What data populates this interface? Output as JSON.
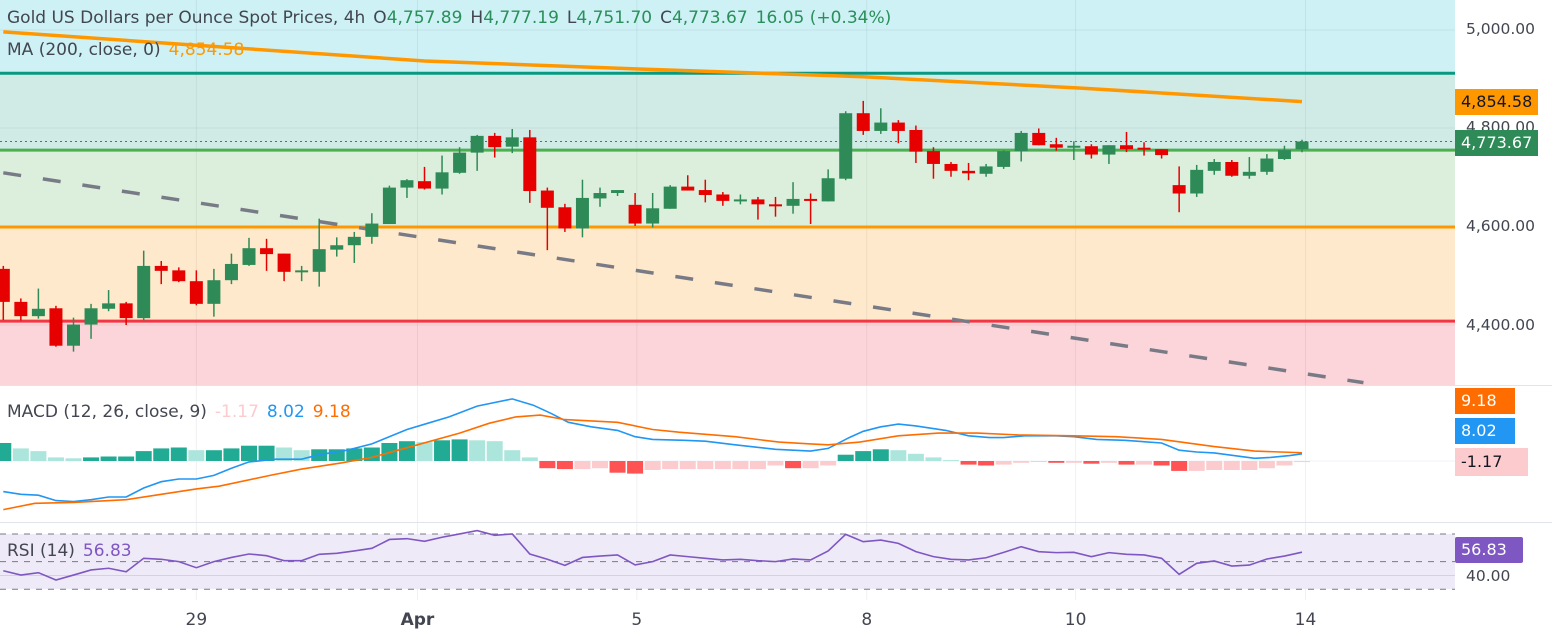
{
  "header": {
    "title": "Gold US Dollars per Ounce Spot Prices, 4h",
    "o_label": "O",
    "o_value": "4,757.89",
    "h_label": "H",
    "h_value": "4,777.19",
    "l_label": "L",
    "l_value": "4,751.70",
    "c_label": "C",
    "c_value": "4,773.67",
    "change": "16.05 (+0.34%)"
  },
  "ma_legend": {
    "label": "MA (200, close, 0)",
    "value": "4,854.58"
  },
  "macd_legend": {
    "label": "MACD (12, 26, close, 9)",
    "hist": "-1.17",
    "macd": "8.02",
    "signal": "9.18"
  },
  "rsi_legend": {
    "label": "RSI (14)",
    "value": "56.83"
  },
  "colors": {
    "up": "#2e8b57",
    "down": "#e60000",
    "ma": "#ff9800",
    "macd": "#2196f3",
    "signal": "#ff6d00",
    "rsi": "#7e57c2",
    "hist_up_strong": "#22ab94",
    "hist_up_weak": "#ace5dc",
    "hist_down_strong": "#ff5252",
    "hist_down_weak": "#fccbcd"
  },
  "right_axis": {
    "ticks": [
      {
        "value": 5000,
        "label": "5,000.00"
      },
      {
        "value": 4800,
        "label": "4,800.00"
      },
      {
        "value": 4600,
        "label": "4,600.00"
      },
      {
        "value": 4400,
        "label": "4,400.00"
      }
    ],
    "ma_tag": "4,854.58",
    "price_tag": "4,773.67",
    "macd_signal_tag": "9.18",
    "macd_tag": "8.02",
    "hist_tag": "-1.17",
    "rsi_tag": "56.83",
    "rsi_tick": "40.00"
  },
  "chart_data": {
    "type": "candlestick",
    "interval": "4h",
    "x_ticks": [
      {
        "label": "29",
        "bar": 11
      },
      {
        "label": "Apr",
        "bar": 23.6
      },
      {
        "label": "5",
        "bar": 36.1
      },
      {
        "label": "8",
        "bar": 49.2
      },
      {
        "label": "10",
        "bar": 61.1
      },
      {
        "label": "14",
        "bar": 74.2
      }
    ],
    "ylim": [
      4300,
      5010
    ],
    "candles_ohlc": [
      [
        4515,
        4521,
        4411,
        4448
      ],
      [
        4448,
        4455,
        4410,
        4419
      ],
      [
        4419,
        4475,
        4414,
        4434
      ],
      [
        4435,
        4440,
        4357,
        4359
      ],
      [
        4359,
        4416,
        4347,
        4402
      ],
      [
        4402,
        4444,
        4373,
        4435
      ],
      [
        4434,
        4472,
        4429,
        4445
      ],
      [
        4445,
        4448,
        4401,
        4415
      ],
      [
        4415,
        4552,
        4410,
        4521
      ],
      [
        4521,
        4531,
        4484,
        4511
      ],
      [
        4512,
        4518,
        4488,
        4490
      ],
      [
        4490,
        4512,
        4441,
        4444
      ],
      [
        4444,
        4515,
        4418,
        4492
      ],
      [
        4492,
        4546,
        4484,
        4525
      ],
      [
        4523,
        4578,
        4521,
        4557
      ],
      [
        4557,
        4576,
        4511,
        4545
      ],
      [
        4546,
        4546,
        4490,
        4509
      ],
      [
        4509,
        4521,
        4490,
        4512
      ],
      [
        4509,
        4617,
        4479,
        4555
      ],
      [
        4554,
        4579,
        4540,
        4563
      ],
      [
        4563,
        4590,
        4527,
        4580
      ],
      [
        4580,
        4628,
        4566,
        4607
      ],
      [
        4606,
        4684,
        4606,
        4680
      ],
      [
        4680,
        4697,
        4659,
        4695
      ],
      [
        4693,
        4722,
        4676,
        4678
      ],
      [
        4678,
        4745,
        4666,
        4711
      ],
      [
        4710,
        4762,
        4708,
        4751
      ],
      [
        4751,
        4787,
        4714,
        4785
      ],
      [
        4785,
        4791,
        4741,
        4762
      ],
      [
        4763,
        4799,
        4750,
        4782
      ],
      [
        4782,
        4797,
        4649,
        4673
      ],
      [
        4674,
        4680,
        4553,
        4639
      ],
      [
        4640,
        4647,
        4590,
        4597
      ],
      [
        4597,
        4696,
        4579,
        4659
      ],
      [
        4658,
        4680,
        4641,
        4669
      ],
      [
        4669,
        4675,
        4663,
        4675
      ],
      [
        4645,
        4669,
        4602,
        4607
      ],
      [
        4607,
        4669,
        4599,
        4638
      ],
      [
        4637,
        4685,
        4637,
        4682
      ],
      [
        4682,
        4705,
        4674,
        4674
      ],
      [
        4675,
        4696,
        4650,
        4665
      ],
      [
        4666,
        4671,
        4643,
        4653
      ],
      [
        4653,
        4666,
        4646,
        4656
      ],
      [
        4656,
        4661,
        4615,
        4646
      ],
      [
        4646,
        4661,
        4621,
        4644
      ],
      [
        4643,
        4691,
        4627,
        4657
      ],
      [
        4657,
        4668,
        4606,
        4653
      ],
      [
        4652,
        4717,
        4652,
        4699
      ],
      [
        4698,
        4835,
        4695,
        4831
      ],
      [
        4831,
        4856,
        4787,
        4795
      ],
      [
        4795,
        4841,
        4789,
        4812
      ],
      [
        4812,
        4817,
        4770,
        4795
      ],
      [
        4797,
        4806,
        4730,
        4753
      ],
      [
        4754,
        4762,
        4698,
        4728
      ],
      [
        4728,
        4732,
        4702,
        4714
      ],
      [
        4714,
        4730,
        4695,
        4709
      ],
      [
        4708,
        4728,
        4702,
        4723
      ],
      [
        4722,
        4756,
        4718,
        4754
      ],
      [
        4754,
        4795,
        4733,
        4791
      ],
      [
        4791,
        4800,
        4766,
        4766
      ],
      [
        4768,
        4781,
        4755,
        4761
      ],
      [
        4763,
        4774,
        4736,
        4765
      ],
      [
        4764,
        4768,
        4739,
        4747
      ],
      [
        4747,
        4766,
        4728,
        4766
      ],
      [
        4766,
        4793,
        4752,
        4758
      ],
      [
        4761,
        4772,
        4745,
        4759
      ],
      [
        4758,
        4758,
        4739,
        4746
      ],
      [
        4685,
        4723,
        4630,
        4668
      ],
      [
        4668,
        4726,
        4661,
        4716
      ],
      [
        4714,
        4738,
        4706,
        4732
      ],
      [
        4732,
        4736,
        4702,
        4704
      ],
      [
        4704,
        4742,
        4698,
        4712
      ],
      [
        4712,
        4748,
        4706,
        4739
      ],
      [
        4738,
        4765,
        4736,
        4756
      ],
      [
        4757.89,
        4777.19,
        4751.7,
        4773.67
      ]
    ],
    "last_price": 4773.67,
    "ma200_points": [
      [
        0,
        4996
      ],
      [
        11,
        4969
      ],
      [
        24,
        4937
      ],
      [
        36,
        4921
      ],
      [
        49,
        4905
      ],
      [
        61.4,
        4882
      ],
      [
        74,
        4854.58
      ]
    ],
    "levels": [
      {
        "price": 4912,
        "color": "#089981"
      },
      {
        "price": 4756,
        "color": "#4caf50"
      },
      {
        "price": 4600,
        "color": "#ff9800"
      },
      {
        "price": 4409,
        "color": "#f23645"
      }
    ],
    "zones": [
      {
        "from": 4912,
        "to": 5100,
        "color": "#cdf1f5"
      },
      {
        "from": 4756,
        "to": 4912,
        "color": "#d0ebe6"
      },
      {
        "from": 4600,
        "to": 4756,
        "color": "#dcefdc"
      },
      {
        "from": 4409,
        "to": 4600,
        "color": "#ffe9cc"
      },
      {
        "from": 4200,
        "to": 4409,
        "color": "#fbd5d9"
      }
    ],
    "trendline": {
      "from": [
        0,
        4710
      ],
      "to": [
        77.5,
        4284
      ],
      "color": "#787b86",
      "style": "dashed"
    },
    "macd": {
      "macd_points": [
        [
          0,
          -34
        ],
        [
          1,
          -37
        ],
        [
          2,
          -38
        ],
        [
          3,
          -44
        ],
        [
          4,
          -45
        ],
        [
          5,
          -43
        ],
        [
          6,
          -40
        ],
        [
          7,
          -40
        ],
        [
          8,
          -30
        ],
        [
          9,
          -23
        ],
        [
          10,
          -20
        ],
        [
          11,
          -20
        ],
        [
          12,
          -16
        ],
        [
          13,
          -8
        ],
        [
          14,
          -1
        ],
        [
          15.5,
          2
        ],
        [
          17,
          2
        ],
        [
          18,
          7
        ],
        [
          19.6,
          12
        ],
        [
          21,
          19
        ],
        [
          23,
          35
        ],
        [
          24.2,
          42
        ],
        [
          25.4,
          49
        ],
        [
          27,
          61
        ],
        [
          29,
          69
        ],
        [
          30.2,
          62
        ],
        [
          31.2,
          53
        ],
        [
          32.2,
          43
        ],
        [
          33.5,
          38
        ],
        [
          35,
          34
        ],
        [
          36,
          27
        ],
        [
          37,
          24
        ],
        [
          38.8,
          23
        ],
        [
          40,
          22
        ],
        [
          41.7,
          18
        ],
        [
          44,
          13
        ],
        [
          46,
          11
        ],
        [
          47,
          14
        ],
        [
          48.2,
          26
        ],
        [
          49,
          33
        ],
        [
          50,
          38
        ],
        [
          51,
          41
        ],
        [
          52,
          39
        ],
        [
          53.7,
          34
        ],
        [
          55,
          28
        ],
        [
          56.2,
          26
        ],
        [
          57,
          26
        ],
        [
          58.2,
          28
        ],
        [
          60,
          28
        ],
        [
          61,
          27
        ],
        [
          62.3,
          24
        ],
        [
          63.9,
          23
        ],
        [
          66,
          20
        ],
        [
          67,
          12
        ],
        [
          68,
          10
        ],
        [
          69,
          9
        ],
        [
          71.3,
          3
        ],
        [
          72.2,
          4
        ],
        [
          73.3,
          6
        ],
        [
          74,
          8.02
        ]
      ],
      "signal_points": [
        [
          0,
          -54
        ],
        [
          1.8,
          -47
        ],
        [
          4,
          -46
        ],
        [
          7,
          -43
        ],
        [
          9,
          -37
        ],
        [
          11,
          -31
        ],
        [
          12.3,
          -28
        ],
        [
          15.2,
          -16
        ],
        [
          17,
          -9
        ],
        [
          19.3,
          -2
        ],
        [
          21,
          4
        ],
        [
          23.6,
          18
        ],
        [
          26,
          31
        ],
        [
          27.7,
          42
        ],
        [
          29.2,
          49
        ],
        [
          30.6,
          51
        ],
        [
          32,
          46
        ],
        [
          35,
          43
        ],
        [
          37,
          35
        ],
        [
          38.5,
          32
        ],
        [
          41.7,
          27
        ],
        [
          44.2,
          21
        ],
        [
          46,
          19
        ],
        [
          47,
          18
        ],
        [
          48.8,
          21
        ],
        [
          51,
          28
        ],
        [
          53.3,
          31
        ],
        [
          55.5,
          31
        ],
        [
          57.8,
          29
        ],
        [
          61,
          28
        ],
        [
          63.4,
          27
        ],
        [
          66,
          24
        ],
        [
          69,
          16
        ],
        [
          71.3,
          11
        ],
        [
          74,
          9.18
        ]
      ],
      "histogram": [
        20,
        14,
        11,
        4,
        3,
        4,
        5,
        5,
        11,
        14,
        15,
        12,
        12,
        14,
        17,
        17,
        15,
        12,
        13,
        13,
        14,
        15,
        20,
        22,
        21,
        23,
        24,
        23,
        22,
        12,
        4,
        -8,
        -9,
        -9,
        -8,
        -13,
        -14,
        -10,
        -9,
        -9,
        -9,
        -9,
        -9,
        -9,
        -5,
        -8,
        -8,
        -5,
        7,
        11,
        13,
        12,
        8,
        4,
        1,
        -4,
        -5,
        -4,
        -2,
        -1,
        -2,
        -2,
        -3,
        -2,
        -4,
        -4,
        -5,
        -11,
        -11,
        -10,
        -10,
        -10,
        -8,
        -5,
        -1.17
      ]
    },
    "rsi": {
      "values": [
        43.4,
        40.3,
        42,
        36.7,
        40.3,
        44,
        45.2,
        42.7,
        52.4,
        51.7,
        50,
        45.6,
        50,
        53,
        55.5,
        54.3,
        50.7,
        50.7,
        55.3,
        56,
        57.7,
        59.6,
        66,
        66.6,
        64.7,
        67.6,
        70,
        72.4,
        69,
        70,
        55.5,
        51.7,
        47.3,
        53,
        54,
        54.8,
        47.6,
        50,
        54.8,
        53.6,
        52.4,
        51.2,
        51.7,
        50.7,
        50,
        51.9,
        51.2,
        57.7,
        69.7,
        64.4,
        65.6,
        63.2,
        57.2,
        53.6,
        51.7,
        51.2,
        52.8,
        56.7,
        60.8,
        57.2,
        56.5,
        56.7,
        53.6,
        56.5,
        55.3,
        54.8,
        52.4,
        40.8,
        48.8,
        50.5,
        46.8,
        47.5,
        51.9,
        54,
        56.83
      ],
      "bands": [
        70,
        50,
        30
      ],
      "band_fill": "#efeaf8"
    }
  }
}
